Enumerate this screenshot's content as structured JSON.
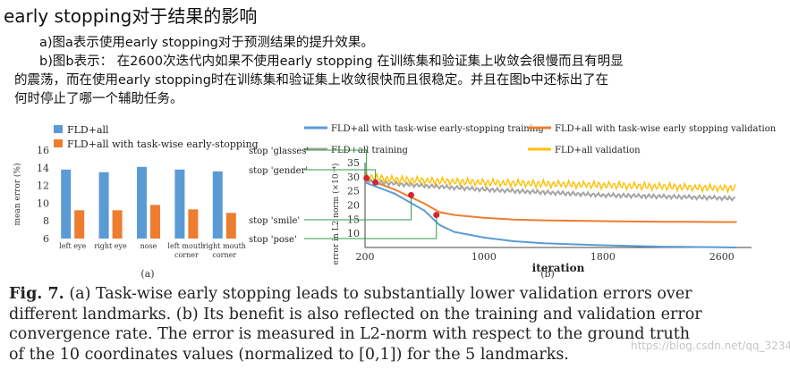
{
  "slide": {
    "title": "early stopping对于结果的影响",
    "para_a": "a)图a表示使用early stopping对于预测结果的提升效果。",
    "para_b1": "b)图b表示： 在2600次迭代内如果不使用early  stopping  在训练集和验证集上收敛会很慢而且有明显",
    "para_b2": "的震荡，而在使用early  stopping时在训练集和验证集上收敛很快而且很稳定。并且在图b中还标出了在",
    "para_b3": "何时停止了哪一个辅助任务。"
  },
  "caption": {
    "fig_label": "Fig. 7.",
    "line1": " (a) Task-wise early stopping leads to substantially lower validation errors over",
    "line2": "different landmarks. (b) Its benefit is also reflected on the training and validation error",
    "line3": "convergence rate. The error is measured in L2-norm with respect to the ground truth",
    "line4": "of the 10 coordinates values (normalized to [0,1]) for the 5 landmarks."
  },
  "watermark": "https://blog.csdn.net/qq_32342205",
  "chart_data": [
    {
      "type": "bar",
      "panel_label": "(a)",
      "ylabel": "mean error (%)",
      "ylim": [
        6,
        16
      ],
      "yticks": [
        6,
        8,
        10,
        12,
        14,
        16
      ],
      "categories": [
        "left eye",
        "right eye",
        "nose",
        "left mouth corner",
        "right mouth corner"
      ],
      "category_lines": [
        [
          "left eye"
        ],
        [
          "right eye"
        ],
        [
          "nose"
        ],
        [
          "left mouth",
          "corner"
        ],
        [
          "right mouth",
          "corner"
        ]
      ],
      "series": [
        {
          "name": "FLD+all",
          "color": "#5b9bd5",
          "values": [
            13.8,
            13.5,
            14.1,
            13.8,
            13.6
          ]
        },
        {
          "name": "FLD+all with task-wise early-stopping",
          "color": "#ed7d31",
          "values": [
            9.2,
            9.2,
            9.8,
            9.3,
            8.9
          ]
        }
      ],
      "legend_position": "top-left"
    },
    {
      "type": "line",
      "panel_label": "(b)",
      "xlabel": "iteration",
      "ylabel": "error in L2 norm (×10⁻⁴)",
      "xlim": [
        200,
        2800
      ],
      "ylim": [
        5,
        35
      ],
      "xticks": [
        200,
        1000,
        1800,
        2600
      ],
      "yticks": [
        10,
        15,
        20,
        25,
        30,
        35
      ],
      "series": [
        {
          "name": "FLD+all with task-wise early-stopping training",
          "color": "#5b9bd5",
          "x": [
            200,
            300,
            400,
            500,
            600,
            700,
            800,
            1000,
            1200,
            1400,
            1800,
            2200,
            2600,
            2700
          ],
          "y": [
            28,
            26,
            24,
            21,
            18,
            13,
            10.5,
            8.5,
            7.2,
            6.5,
            5.8,
            5.3,
            5.1,
            5.0
          ]
        },
        {
          "name": "FLD+all with task-wise early stopping validation",
          "color": "#ed7d31",
          "x": [
            200,
            300,
            400,
            500,
            600,
            700,
            800,
            1000,
            1200,
            1400,
            1800,
            2200,
            2600,
            2700
          ],
          "y": [
            29,
            27.5,
            25.5,
            23,
            20.5,
            17.5,
            16.5,
            15.5,
            14.9,
            14.6,
            14.3,
            14.1,
            14.0,
            14.0
          ]
        },
        {
          "name": "FLD+all training",
          "color": "#a5a5a5",
          "x": [
            200,
            400,
            700,
            1000,
            1400,
            1800,
            2200,
            2600,
            2700
          ],
          "y": [
            28.5,
            27.5,
            26.5,
            25.5,
            24.5,
            23.5,
            23,
            22.5,
            22.3
          ]
        },
        {
          "name": "FLD+all validation",
          "color": "#ffc000",
          "x": [
            200,
            400,
            700,
            1000,
            1400,
            1800,
            2200,
            2600,
            2700
          ],
          "y": [
            30,
            29,
            28.5,
            28,
            27.5,
            27,
            26.5,
            26,
            26
          ]
        }
      ],
      "stop_markers": [
        {
          "label": "stop 'glasses'",
          "x": 210,
          "y": 29.5
        },
        {
          "label": "stop 'gender'",
          "x": 270,
          "y": 28
        },
        {
          "label": "stop 'smile'",
          "x": 510,
          "y": 23.5
        },
        {
          "label": "stop 'pose'",
          "x": 680,
          "y": 16.5
        }
      ]
    }
  ]
}
